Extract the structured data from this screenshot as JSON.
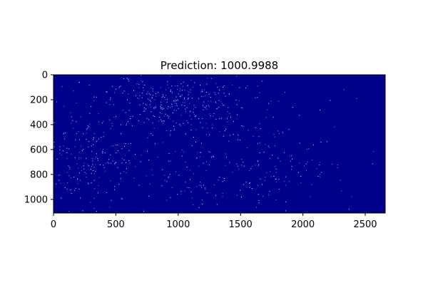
{
  "chart_data": {
    "type": "heatmap",
    "title": "Prediction: 1000.9988",
    "xlabel": "",
    "ylabel": "",
    "xlim": [
      0,
      2660
    ],
    "ylim": [
      1110,
      0
    ],
    "y_inverted": true,
    "grid": false,
    "x_ticks": [
      0,
      500,
      1000,
      1500,
      2000,
      2500
    ],
    "y_ticks": [
      0,
      200,
      400,
      600,
      800,
      1000
    ],
    "colormap": "jet",
    "background_value": 0,
    "colors": {
      "background": "#00008b",
      "dot_bright": "#9fffff",
      "dot_mid": "#3fa9ff"
    },
    "point_density_clusters": [
      {
        "x": 950,
        "y": 200,
        "sx": 300,
        "sy": 120,
        "weight": 0.36
      },
      {
        "x": 250,
        "y": 650,
        "sx": 200,
        "sy": 230,
        "weight": 0.26
      },
      {
        "x": 1300,
        "y": 700,
        "sx": 350,
        "sy": 250,
        "weight": 0.2
      },
      {
        "x": 1800,
        "y": 700,
        "sx": 250,
        "sy": 180,
        "weight": 0.08
      },
      {
        "x": 1330,
        "y": 550,
        "sx": 1330,
        "sy": 555,
        "weight": 0.1
      }
    ]
  }
}
